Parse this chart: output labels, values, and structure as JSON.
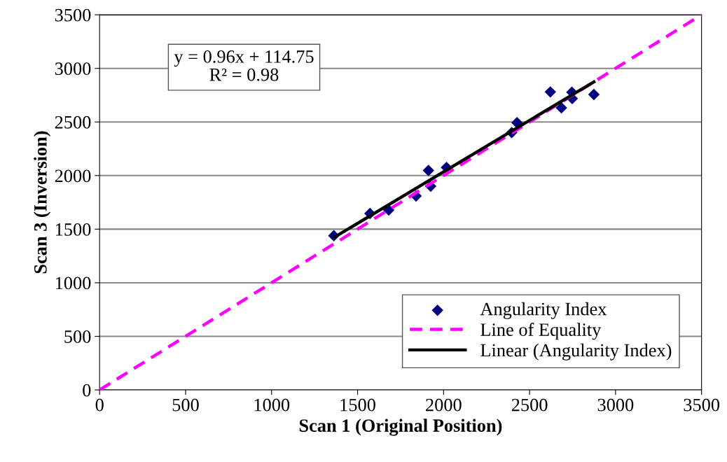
{
  "chart_data": {
    "type": "scatter",
    "xlabel": "Scan 1 (Original Position)",
    "ylabel": "Scan 3 (Inversion)",
    "xlim": [
      0,
      3500
    ],
    "ylim": [
      0,
      3500
    ],
    "xticks": [
      0,
      500,
      1000,
      1500,
      2000,
      2500,
      3000,
      3500
    ],
    "yticks": [
      0,
      500,
      1000,
      1500,
      2000,
      2500,
      3000,
      3500
    ],
    "grid": "y",
    "legend": "bottom right",
    "annotations": [
      "y = 0.96x + 114.75\nR² = 0.98"
    ],
    "series": [
      {
        "name": "Angularity Index",
        "color": "#000080",
        "marker": "diamond",
        "x": [
          1362,
          1572,
          1681,
          1840,
          1912,
          1925,
          2017,
          2396,
          2427,
          2621,
          2685,
          2746,
          2748,
          2874
        ],
        "values": [
          1439,
          1646,
          1678,
          1809,
          2048,
          1900,
          2075,
          2401,
          2494,
          2780,
          2632,
          2777,
          2718,
          2756
        ]
      },
      {
        "name": "Line of Equality",
        "type": "line",
        "color": "#ff00ff",
        "line_style": "dashed",
        "x": [
          0,
          3500
        ],
        "values": [
          0,
          3500
        ]
      },
      {
        "name": "Linear (Angularity Index)",
        "type": "line",
        "color": "#000000",
        "line_style": "solid",
        "x": [
          1362,
          2874
        ],
        "values": [
          1422,
          2874
        ]
      }
    ]
  }
}
